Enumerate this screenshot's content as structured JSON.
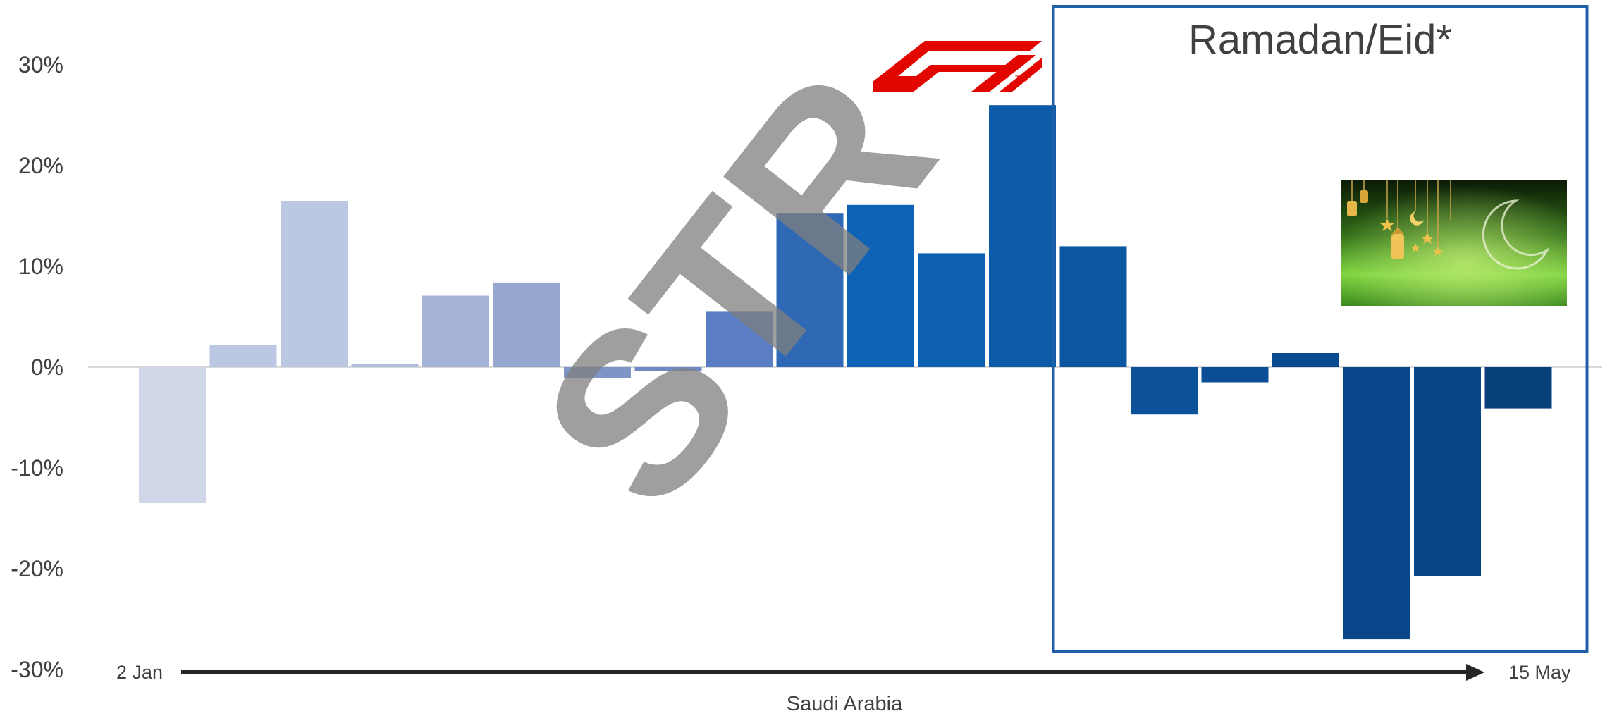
{
  "chart_data": {
    "type": "bar",
    "xlabel": "Saudi Arabia",
    "ylabel": "",
    "ylim": [
      -30,
      30
    ],
    "yticks": [
      "30%",
      "20%",
      "10%",
      "0%",
      "-10%",
      "-20%",
      "-30%"
    ],
    "ytick_values": [
      30,
      20,
      10,
      0,
      -10,
      -20,
      -30
    ],
    "grid": false,
    "legend": "none",
    "axis_start_label": "2 Jan",
    "axis_end_label": "15 May",
    "values": [
      -13.5,
      2.2,
      16.5,
      0.3,
      7.1,
      8.4,
      -1.1,
      -0.4,
      5.5,
      15.3,
      16.1,
      11.3,
      26.0,
      12.0,
      -4.7,
      -1.5,
      1.4,
      -27.0,
      -20.7,
      -4.1
    ],
    "colors": [
      "#cfd7e9",
      "#bcc8e3",
      "#bcc8e3",
      "#b0bedc",
      "#a3b2d6",
      "#96a8d0",
      "#7f95c7",
      "#7089c0",
      "#5a7dc3",
      "#2f68b4",
      "#0e63b6",
      "#0e60b0",
      "#0b5ba8",
      "#0c56a1",
      "#0b519a",
      "#0a4e95",
      "#0a4b90",
      "#09468a",
      "#084585",
      "#073f7b"
    ],
    "highlight": {
      "title": "Ramadan/Eid*",
      "first_index": 13,
      "last_index": 19,
      "border_color": "#1f5fa8"
    },
    "watermark": "STR",
    "logo": "F1"
  }
}
